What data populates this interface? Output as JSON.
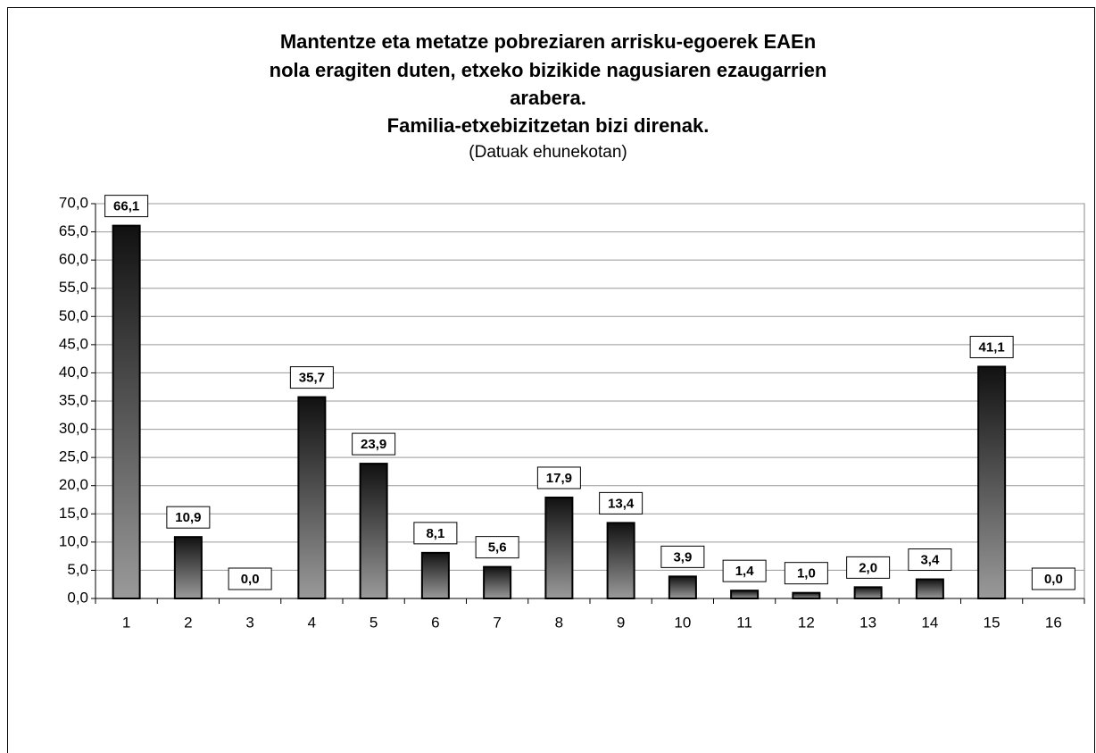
{
  "chart_data": {
    "type": "bar",
    "title": [
      "Mantentze eta metatze pobreziaren arrisku-egoerek EAEn",
      "nola eragiten duten, etxeko bizikide nagusiaren ezaugarrien",
      "arabera.",
      "Familia-etxebizitzetan bizi direnak."
    ],
    "subtitle": "(Datuak ehunekotan)",
    "categories": [
      "1",
      "2",
      "3",
      "4",
      "5",
      "6",
      "7",
      "8",
      "9",
      "10",
      "11",
      "12",
      "13",
      "14",
      "15",
      "16"
    ],
    "values": [
      66.1,
      10.9,
      0.0,
      35.7,
      23.9,
      8.1,
      5.6,
      17.9,
      13.4,
      3.9,
      1.4,
      1.0,
      2.0,
      3.4,
      41.1,
      0.0
    ],
    "value_labels": [
      "66,1",
      "10,9",
      "0,0",
      "35,7",
      "23,9",
      "8,1",
      "5,6",
      "17,9",
      "13,4",
      "3,9",
      "1,4",
      "1,0",
      "2,0",
      "3,4",
      "41,1",
      "0,0"
    ],
    "ylim": [
      0,
      70
    ],
    "yticks": [
      {
        "value": 0,
        "label": "0,0"
      },
      {
        "value": 5,
        "label": "5,0"
      },
      {
        "value": 10,
        "label": "10,0"
      },
      {
        "value": 15,
        "label": "15,0"
      },
      {
        "value": 20,
        "label": "20,0"
      },
      {
        "value": 25,
        "label": "25,0"
      },
      {
        "value": 30,
        "label": "30,0"
      },
      {
        "value": 35,
        "label": "35,0"
      },
      {
        "value": 40,
        "label": "40,0"
      },
      {
        "value": 45,
        "label": "45,0"
      },
      {
        "value": 50,
        "label": "50,0"
      },
      {
        "value": 55,
        "label": "55,0"
      },
      {
        "value": 60,
        "label": "60,0"
      },
      {
        "value": 65,
        "label": "65,0"
      },
      {
        "value": 70,
        "label": "70,0"
      }
    ],
    "grid": true
  }
}
